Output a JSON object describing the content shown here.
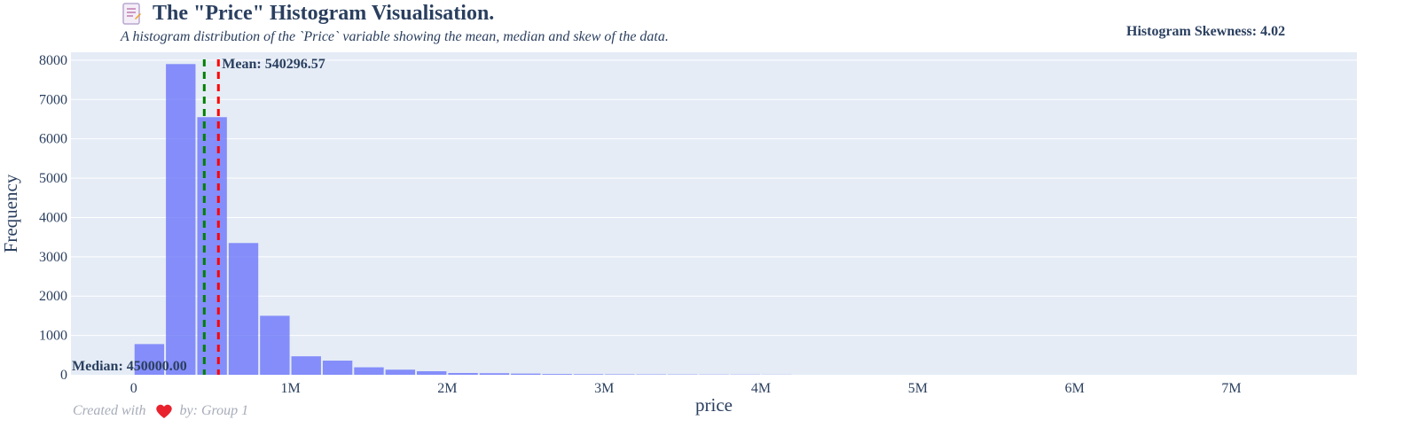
{
  "header": {
    "title": "The \"Price\" Histogram Visualisation.",
    "subtitle": "A histogram distribution of the `Price` variable showing the mean, median and skew of the data.",
    "skewness": "Histogram Skewness: 4.02"
  },
  "footer": {
    "created_with": "Created with",
    "by": "by: Group 1"
  },
  "icons": {
    "title_icon": "document-icon",
    "footer_icon": "heart-icon"
  },
  "colors": {
    "plot_bg": "#e5ecf6",
    "bar": "#636efa",
    "mean_line": "#ff0000",
    "median_line": "#008000",
    "text": "#2a3f5f"
  },
  "chart_data": {
    "type": "bar",
    "xlabel": "price",
    "ylabel": "Frequency",
    "xlim": [
      -400000,
      7800000
    ],
    "ylim": [
      0,
      8200
    ],
    "x_ticks": [
      0,
      1000000,
      2000000,
      3000000,
      4000000,
      5000000,
      6000000,
      7000000
    ],
    "x_tick_labels": [
      "0",
      "1M",
      "2M",
      "3M",
      "4M",
      "5M",
      "6M",
      "7M"
    ],
    "y_ticks": [
      0,
      1000,
      2000,
      3000,
      4000,
      5000,
      6000,
      7000,
      8000
    ],
    "y_tick_labels": [
      "0",
      "1000",
      "2000",
      "3000",
      "4000",
      "5000",
      "6000",
      "7000",
      "8000"
    ],
    "bin_size": 200000,
    "bin_starts": [
      0,
      200000,
      400000,
      600000,
      800000,
      1000000,
      1200000,
      1400000,
      1600000,
      1800000,
      2000000,
      2200000,
      2400000,
      2600000,
      2800000,
      3000000,
      3200000,
      3400000,
      3600000,
      3800000,
      4000000
    ],
    "values": [
      780,
      7900,
      6550,
      3350,
      1500,
      470,
      360,
      190,
      130,
      90,
      45,
      40,
      30,
      20,
      15,
      12,
      10,
      8,
      6,
      5,
      3
    ],
    "mean": 540296.57,
    "median": 450000.0,
    "mean_label": "Mean: 540296.57",
    "median_label": "Median: 450000.00"
  }
}
